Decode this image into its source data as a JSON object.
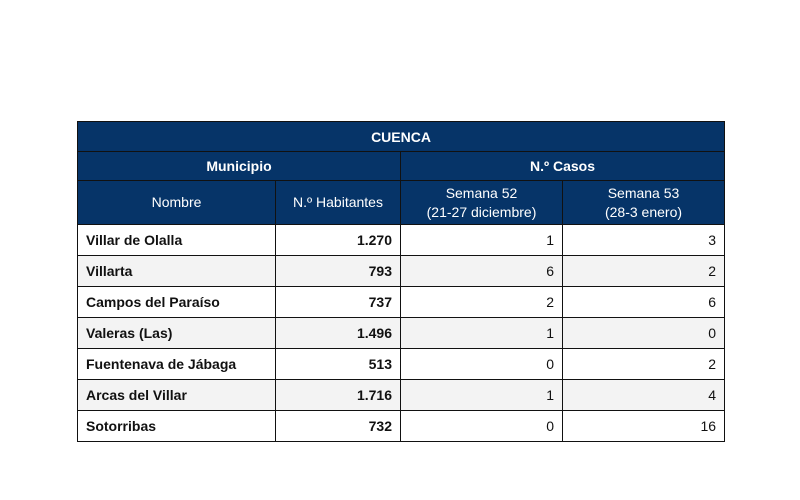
{
  "title": "CUENCA",
  "groups": {
    "municipio": "Municipio",
    "casos": "N.º Casos"
  },
  "columns": {
    "nombre": "Nombre",
    "habitantes": "N.º Habitantes",
    "s52_line1": "Semana 52",
    "s52_line2": "(21-27 diciembre)",
    "s53_line1": "Semana 53",
    "s53_line2": "(28-3 enero)"
  },
  "header_color": "#063468",
  "rows": [
    {
      "nombre": "Villar de Olalla",
      "habitantes": "1.270",
      "s52": "1",
      "s53": "3"
    },
    {
      "nombre": "Villarta",
      "habitantes": "793",
      "s52": "6",
      "s53": "2"
    },
    {
      "nombre": "Campos del Paraíso",
      "habitantes": "737",
      "s52": "2",
      "s53": "6"
    },
    {
      "nombre": "Valeras (Las)",
      "habitantes": "1.496",
      "s52": "1",
      "s53": "0"
    },
    {
      "nombre": "Fuentenava de Jábaga",
      "habitantes": "513",
      "s52": "0",
      "s53": "2"
    },
    {
      "nombre": "Arcas del Villar",
      "habitantes": "1.716",
      "s52": "1",
      "s53": "4"
    },
    {
      "nombre": "Sotorribas",
      "habitantes": "732",
      "s52": "0",
      "s53": "16"
    }
  ]
}
